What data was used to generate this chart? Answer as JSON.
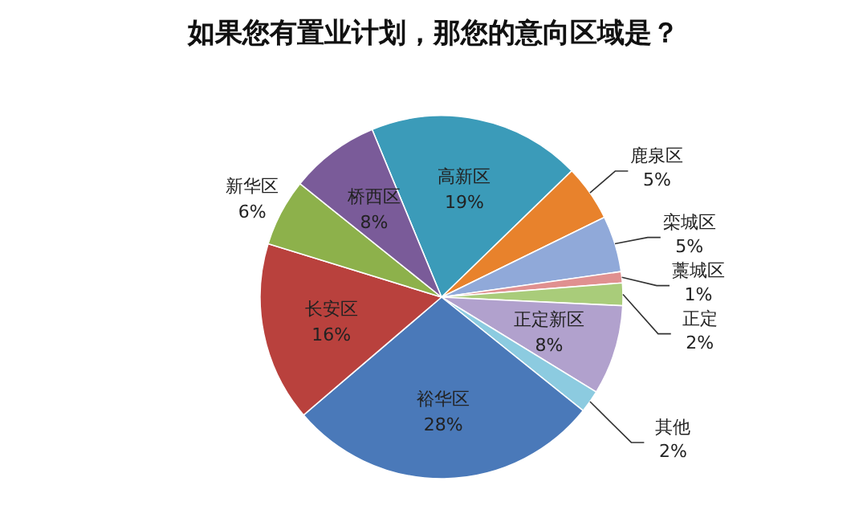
{
  "chart_data": {
    "type": "pie",
    "title": "如果您有置业计划，那您的意向区域是？",
    "categories": [
      "高新区",
      "鹿泉区",
      "栾城区",
      "藁城区",
      "正定",
      "正定新区",
      "其他",
      "裕华区",
      "长安区",
      "新华区",
      "桥西区"
    ],
    "values": [
      19,
      5,
      5,
      1,
      2,
      8,
      2,
      28,
      16,
      6,
      8
    ],
    "value_labels": [
      "19%",
      "5%",
      "5%",
      "1%",
      "2%",
      "8%",
      "2%",
      "28%",
      "16%",
      "6%",
      "8%"
    ],
    "colors": [
      "#3b9bb9",
      "#e8822c",
      "#90a9d9",
      "#e09090",
      "#a9cc7a",
      "#b1a1cd",
      "#8ccbe0",
      "#4a79b9",
      "#b9413d",
      "#8db14b",
      "#7a5b99"
    ]
  }
}
